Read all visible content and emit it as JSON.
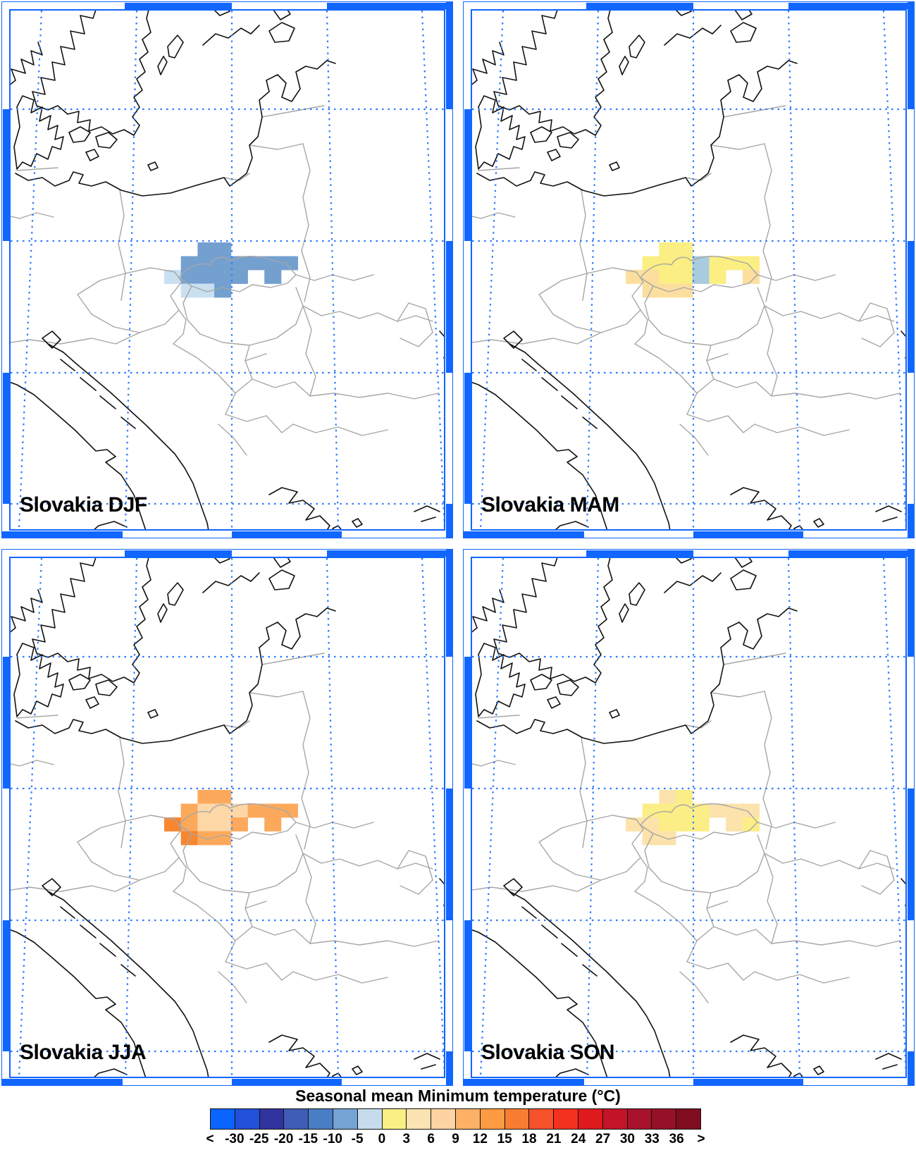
{
  "legend": {
    "title": "Seasonal mean Minimum temperature (°C)",
    "tick_labels": [
      "<",
      "-30",
      "-25",
      "-20",
      "-15",
      "-10",
      "-5",
      "0",
      "3",
      "6",
      "9",
      "12",
      "15",
      "18",
      "21",
      "24",
      "27",
      "30",
      "33",
      "36",
      ">"
    ],
    "colors": [
      "#0a64ff",
      "#2151d8",
      "#31339e",
      "#3f5cb5",
      "#4a7ec4",
      "#74a3d4",
      "#c6dcec",
      "#f9ef85",
      "#fce3b2",
      "#fcd3a1",
      "#fdb167",
      "#fd9a42",
      "#f87d32",
      "#f5512b",
      "#f4301f",
      "#de1a1d",
      "#c31429",
      "#a8122c",
      "#951127",
      "#7f0d1f"
    ]
  },
  "panels": [
    {
      "id": "djf",
      "season": "DJF",
      "label": "Slovakia DJF",
      "cells": [
        {
          "c": 2,
          "r": 1,
          "v": "#74a0d0"
        },
        {
          "c": 3,
          "r": 1,
          "v": "#74a0d0"
        },
        {
          "c": 1,
          "r": 2,
          "v": "#74a0d0"
        },
        {
          "c": 2,
          "r": 2,
          "v": "#74a0d0"
        },
        {
          "c": 3,
          "r": 2,
          "v": "#74a0d0"
        },
        {
          "c": 4,
          "r": 2,
          "v": "#74a0d0"
        },
        {
          "c": 5,
          "r": 2,
          "v": "#74a0d0"
        },
        {
          "c": 6,
          "r": 2,
          "v": "#74a0d0"
        },
        {
          "c": 7,
          "r": 2,
          "v": "#74a0d0"
        },
        {
          "c": 0,
          "r": 3,
          "v": "#c9e0f0"
        },
        {
          "c": 1,
          "r": 3,
          "v": "#74a0d0"
        },
        {
          "c": 2,
          "r": 3,
          "v": "#74a0d0"
        },
        {
          "c": 3,
          "r": 3,
          "v": "#74a0d0"
        },
        {
          "c": 4,
          "r": 3,
          "v": "#74a0d0"
        },
        {
          "c": 6,
          "r": 3,
          "v": "#74a0d0"
        },
        {
          "c": 1,
          "r": 4,
          "v": "#c9e0f0"
        },
        {
          "c": 2,
          "r": 4,
          "v": "#c9e0f0"
        },
        {
          "c": 3,
          "r": 4,
          "v": "#74a0d0"
        }
      ]
    },
    {
      "id": "mam",
      "season": "MAM",
      "label": "Slovakia MAM",
      "cells": [
        {
          "c": 2,
          "r": 1,
          "v": "#fbee83"
        },
        {
          "c": 3,
          "r": 1,
          "v": "#fbee83"
        },
        {
          "c": 1,
          "r": 2,
          "v": "#fbee83"
        },
        {
          "c": 2,
          "r": 2,
          "v": "#fbee83"
        },
        {
          "c": 3,
          "r": 2,
          "v": "#fbee83"
        },
        {
          "c": 4,
          "r": 2,
          "v": "#a9cbe0"
        },
        {
          "c": 5,
          "r": 2,
          "v": "#fbee83"
        },
        {
          "c": 6,
          "r": 2,
          "v": "#fbee83"
        },
        {
          "c": 7,
          "r": 2,
          "v": "#fbee83"
        },
        {
          "c": 0,
          "r": 3,
          "v": "#fcdf9e"
        },
        {
          "c": 1,
          "r": 3,
          "v": "#fcdf9e"
        },
        {
          "c": 2,
          "r": 3,
          "v": "#fbee83"
        },
        {
          "c": 3,
          "r": 3,
          "v": "#fbee83"
        },
        {
          "c": 4,
          "r": 3,
          "v": "#a9cbe0"
        },
        {
          "c": 5,
          "r": 3,
          "v": "#fbee83"
        },
        {
          "c": 7,
          "r": 3,
          "v": "#fcdf9e"
        },
        {
          "c": 1,
          "r": 4,
          "v": "#fcdf9e"
        },
        {
          "c": 2,
          "r": 4,
          "v": "#fcdf9e"
        },
        {
          "c": 3,
          "r": 4,
          "v": "#fcdf9e"
        }
      ]
    },
    {
      "id": "jja",
      "season": "JJA",
      "label": "Slovakia JJA",
      "cells": [
        {
          "c": 2,
          "r": 1,
          "v": "#fca95c"
        },
        {
          "c": 3,
          "r": 1,
          "v": "#fca95c"
        },
        {
          "c": 1,
          "r": 2,
          "v": "#fca95c"
        },
        {
          "c": 2,
          "r": 2,
          "v": "#fdd7a6"
        },
        {
          "c": 3,
          "r": 2,
          "v": "#fdd7a6"
        },
        {
          "c": 4,
          "r": 2,
          "v": "#fdd7a6"
        },
        {
          "c": 5,
          "r": 2,
          "v": "#fca95c"
        },
        {
          "c": 6,
          "r": 2,
          "v": "#fca95c"
        },
        {
          "c": 7,
          "r": 2,
          "v": "#fca95c"
        },
        {
          "c": 0,
          "r": 3,
          "v": "#f8862f"
        },
        {
          "c": 1,
          "r": 3,
          "v": "#fca95c"
        },
        {
          "c": 2,
          "r": 3,
          "v": "#fdd7a6"
        },
        {
          "c": 3,
          "r": 3,
          "v": "#fdd7a6"
        },
        {
          "c": 4,
          "r": 3,
          "v": "#fca95c"
        },
        {
          "c": 6,
          "r": 3,
          "v": "#fca95c"
        },
        {
          "c": 1,
          "r": 4,
          "v": "#f8862f"
        },
        {
          "c": 2,
          "r": 4,
          "v": "#fca95c"
        },
        {
          "c": 3,
          "r": 4,
          "v": "#fca95c"
        }
      ]
    },
    {
      "id": "son",
      "season": "SON",
      "label": "Slovakia SON",
      "cells": [
        {
          "c": 2,
          "r": 1,
          "v": "#fce2ab"
        },
        {
          "c": 3,
          "r": 1,
          "v": "#fcee86"
        },
        {
          "c": 1,
          "r": 2,
          "v": "#fcee86"
        },
        {
          "c": 2,
          "r": 2,
          "v": "#fcee86"
        },
        {
          "c": 3,
          "r": 2,
          "v": "#fcee86"
        },
        {
          "c": 4,
          "r": 2,
          "v": "#fcee86"
        },
        {
          "c": 5,
          "r": 2,
          "v": "#fce2ab"
        },
        {
          "c": 6,
          "r": 2,
          "v": "#fce2ab"
        },
        {
          "c": 7,
          "r": 2,
          "v": "#fce2ab"
        },
        {
          "c": 0,
          "r": 3,
          "v": "#fce2ab"
        },
        {
          "c": 1,
          "r": 3,
          "v": "#fce2ab"
        },
        {
          "c": 2,
          "r": 3,
          "v": "#fcee86"
        },
        {
          "c": 3,
          "r": 3,
          "v": "#fcee86"
        },
        {
          "c": 4,
          "r": 3,
          "v": "#fcee86"
        },
        {
          "c": 6,
          "r": 3,
          "v": "#fce2ab"
        },
        {
          "c": 7,
          "r": 3,
          "v": "#fcee86"
        },
        {
          "c": 1,
          "r": 4,
          "v": "#fce2ab"
        },
        {
          "c": 2,
          "r": 4,
          "v": "#fce2ab"
        }
      ]
    }
  ],
  "chart_data": {
    "type": "heatmap",
    "title": "Seasonal mean Minimum temperature (°C)",
    "unit": "°C",
    "bin_edges": [
      -30,
      -25,
      -20,
      -15,
      -10,
      -5,
      0,
      3,
      6,
      9,
      12,
      15,
      18,
      21,
      24,
      27,
      30,
      33,
      36
    ],
    "legend_colors": [
      "#0a64ff",
      "#2151d8",
      "#31339e",
      "#3f5cb5",
      "#4a7ec4",
      "#74a3d4",
      "#c6dcec",
      "#f9ef85",
      "#fce3b2",
      "#fcd3a1",
      "#fdb167",
      "#fd9a42",
      "#f87d32",
      "#f5512b",
      "#f4301f",
      "#de1a1d",
      "#c31429",
      "#a8122c",
      "#951127",
      "#7f0d1f"
    ],
    "series": [
      {
        "name": "Slovakia DJF",
        "dominant_bin_c": "-10 to -5",
        "secondary_bins_c": [
          "-5 to 0"
        ]
      },
      {
        "name": "Slovakia MAM",
        "dominant_bin_c": "0 to 3",
        "secondary_bins_c": [
          "3 to 6",
          "-10 to -5 mountain cell"
        ]
      },
      {
        "name": "Slovakia JJA",
        "dominant_bin_c": "9 to 12",
        "secondary_bins_c": [
          "6 to 9",
          "12 to 15"
        ]
      },
      {
        "name": "Slovakia SON",
        "dominant_bin_c": "0 to 3",
        "secondary_bins_c": [
          "3 to 6"
        ]
      }
    ]
  }
}
